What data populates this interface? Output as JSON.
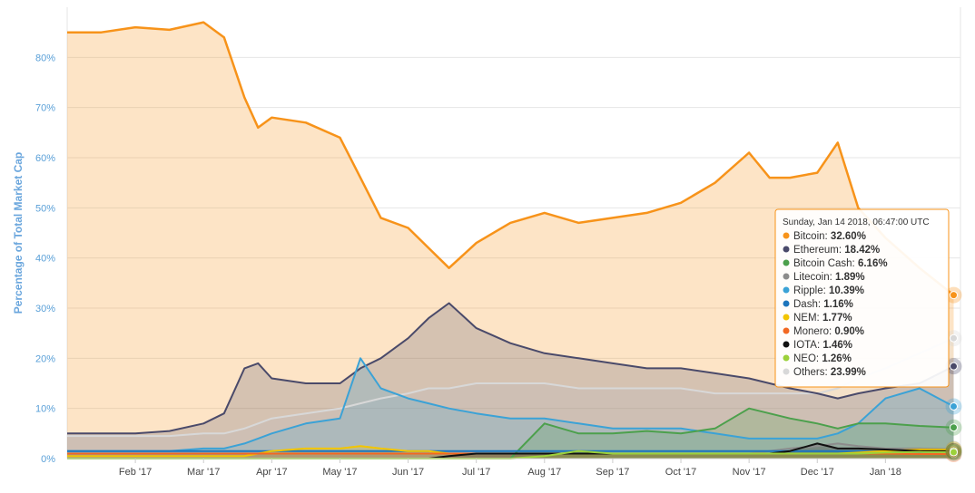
{
  "chart_data": {
    "type": "area",
    "ylabel": "Percentage of Total Market Cap",
    "y_ticks": [
      "0%",
      "10%",
      "20%",
      "30%",
      "40%",
      "50%",
      "60%",
      "70%",
      "80%"
    ],
    "x_ticks": [
      "Feb '17",
      "Mar '17",
      "Apr '17",
      "May '17",
      "Jun '17",
      "Jul '17",
      "Aug '17",
      "Sep '17",
      "Oct '17",
      "Nov '17",
      "Dec '17",
      "Jan '18"
    ],
    "ylim": [
      0,
      90
    ],
    "xlim": [
      0,
      13.1
    ],
    "grid": true,
    "x": [
      0,
      0.5,
      1,
      1.5,
      2,
      2.3,
      2.6,
      2.8,
      3,
      3.5,
      4,
      4.3,
      4.6,
      5,
      5.3,
      5.6,
      6,
      6.5,
      7,
      7.5,
      8,
      8.5,
      9,
      9.5,
      10,
      10.3,
      10.6,
      11,
      11.3,
      11.6,
      12,
      12.5,
      13
    ],
    "series": [
      {
        "name": "Bitcoin",
        "color": "#f7931a",
        "values": [
          85,
          85,
          86,
          85.5,
          87,
          84,
          72,
          66,
          68,
          67,
          64,
          56,
          48,
          46,
          42,
          38,
          43,
          47,
          49,
          47,
          48,
          49,
          51,
          55,
          61,
          56,
          56,
          57,
          63,
          50,
          44,
          38,
          32.6
        ]
      },
      {
        "name": "Ethereum",
        "color": "#4a4a6a",
        "values": [
          5,
          5,
          5,
          5.5,
          7,
          9,
          18,
          19,
          16,
          15,
          15,
          18,
          20,
          24,
          28,
          31,
          26,
          23,
          21,
          20,
          19,
          18,
          18,
          17,
          16,
          15,
          14,
          13,
          12,
          13,
          14,
          15,
          18.4
        ]
      },
      {
        "name": "Bitcoin Cash",
        "color": "#4ca04c",
        "values": [
          0,
          0,
          0,
          0,
          0,
          0,
          0,
          0,
          0,
          0,
          0,
          0,
          0,
          0,
          0,
          0,
          0,
          0,
          7,
          5,
          5,
          5.5,
          5,
          6,
          10,
          9,
          8,
          7,
          6,
          7,
          7,
          6.5,
          6.2
        ]
      },
      {
        "name": "Litecoin",
        "color": "#8c8c8c",
        "values": [
          1,
          1,
          1,
          1,
          1,
          1,
          1,
          1,
          1,
          1,
          1,
          1,
          1,
          1,
          1,
          1,
          1,
          1,
          1,
          1,
          1,
          1,
          1,
          1,
          1,
          1.5,
          2,
          2.5,
          3,
          2.5,
          2,
          2,
          1.9
        ]
      },
      {
        "name": "Ripple",
        "color": "#3ba2d6",
        "values": [
          1.5,
          1.5,
          1.5,
          1.5,
          2,
          2,
          3,
          4,
          5,
          7,
          8,
          20,
          14,
          12,
          11,
          10,
          9,
          8,
          8,
          7,
          6,
          6,
          6,
          5,
          4,
          4,
          4,
          4,
          5,
          7,
          12,
          14,
          10.4
        ]
      },
      {
        "name": "Dash",
        "color": "#1c75bc",
        "values": [
          1.5,
          1.5,
          1.5,
          1.5,
          1.5,
          1.5,
          1.5,
          1.5,
          1.5,
          1.5,
          1.5,
          1.5,
          1.5,
          1.5,
          1.5,
          1.5,
          1.5,
          1.5,
          1.5,
          1.5,
          1.5,
          1.5,
          1.5,
          1.5,
          1.5,
          1.5,
          1.5,
          1.5,
          1.5,
          1.5,
          1.3,
          1.2,
          1.16
        ]
      },
      {
        "name": "NEM",
        "color": "#f2c500",
        "values": [
          0.5,
          0.5,
          0.5,
          0.5,
          0.5,
          0.5,
          0.5,
          1,
          1.5,
          2,
          2,
          2.5,
          2,
          1.5,
          1.5,
          1,
          1,
          1,
          1,
          1,
          1,
          1,
          1,
          1,
          1,
          1,
          1,
          1,
          1,
          1.2,
          1.5,
          1.8,
          1.77
        ]
      },
      {
        "name": "Monero",
        "color": "#f26822",
        "values": [
          1,
          1,
          1,
          1,
          1,
          1,
          1,
          1,
          1,
          1,
          1,
          1,
          1,
          1,
          1,
          1,
          1,
          1,
          1,
          1,
          1,
          1,
          1,
          1,
          1,
          1,
          1,
          1,
          1,
          1,
          1,
          0.9,
          0.9
        ]
      },
      {
        "name": "IOTA",
        "color": "#111111",
        "values": [
          0,
          0,
          0,
          0,
          0,
          0,
          0,
          0,
          0,
          0,
          0,
          0,
          0,
          0,
          0,
          0.5,
          1,
          1,
          1,
          1,
          1,
          1,
          1,
          1,
          1,
          1,
          1.5,
          3,
          2,
          2,
          1.8,
          1.5,
          1.46
        ]
      },
      {
        "name": "NEO",
        "color": "#9cd13a",
        "values": [
          0,
          0,
          0,
          0,
          0,
          0,
          0,
          0,
          0,
          0,
          0,
          0,
          0,
          0,
          0,
          0,
          0,
          0,
          0.5,
          1.5,
          1,
          1,
          1,
          1,
          1,
          1,
          1,
          1,
          1,
          1,
          1.2,
          1.3,
          1.26
        ]
      },
      {
        "name": "Others",
        "color": "#d8d8d8",
        "values": [
          4.5,
          4.5,
          4.5,
          4.5,
          5,
          5,
          6,
          7,
          8,
          9,
          10,
          11,
          12,
          13,
          14,
          14,
          15,
          15,
          15,
          14,
          14,
          14,
          14,
          13,
          13,
          13,
          13,
          13,
          14,
          16,
          18,
          21,
          24
        ]
      }
    ],
    "tooltip": {
      "title": "Sunday, Jan 14 2018, 06:47:00 UTC",
      "items": [
        {
          "name": "Bitcoin",
          "value": "32.60%",
          "color": "#f7931a"
        },
        {
          "name": "Ethereum",
          "value": "18.42%",
          "color": "#4a4a6a"
        },
        {
          "name": "Bitcoin Cash",
          "value": "6.16%",
          "color": "#4ca04c"
        },
        {
          "name": "Litecoin",
          "value": "1.89%",
          "color": "#8c8c8c"
        },
        {
          "name": "Ripple",
          "value": "10.39%",
          "color": "#3ba2d6"
        },
        {
          "name": "Dash",
          "value": "1.16%",
          "color": "#1c75bc"
        },
        {
          "name": "NEM",
          "value": "1.77%",
          "color": "#f2c500"
        },
        {
          "name": "Monero",
          "value": "0.90%",
          "color": "#f26822"
        },
        {
          "name": "IOTA",
          "value": "1.46%",
          "color": "#111111"
        },
        {
          "name": "NEO",
          "value": "1.26%",
          "color": "#9cd13a"
        },
        {
          "name": "Others",
          "value": "23.99%",
          "color": "#d8d8d8"
        }
      ]
    }
  }
}
